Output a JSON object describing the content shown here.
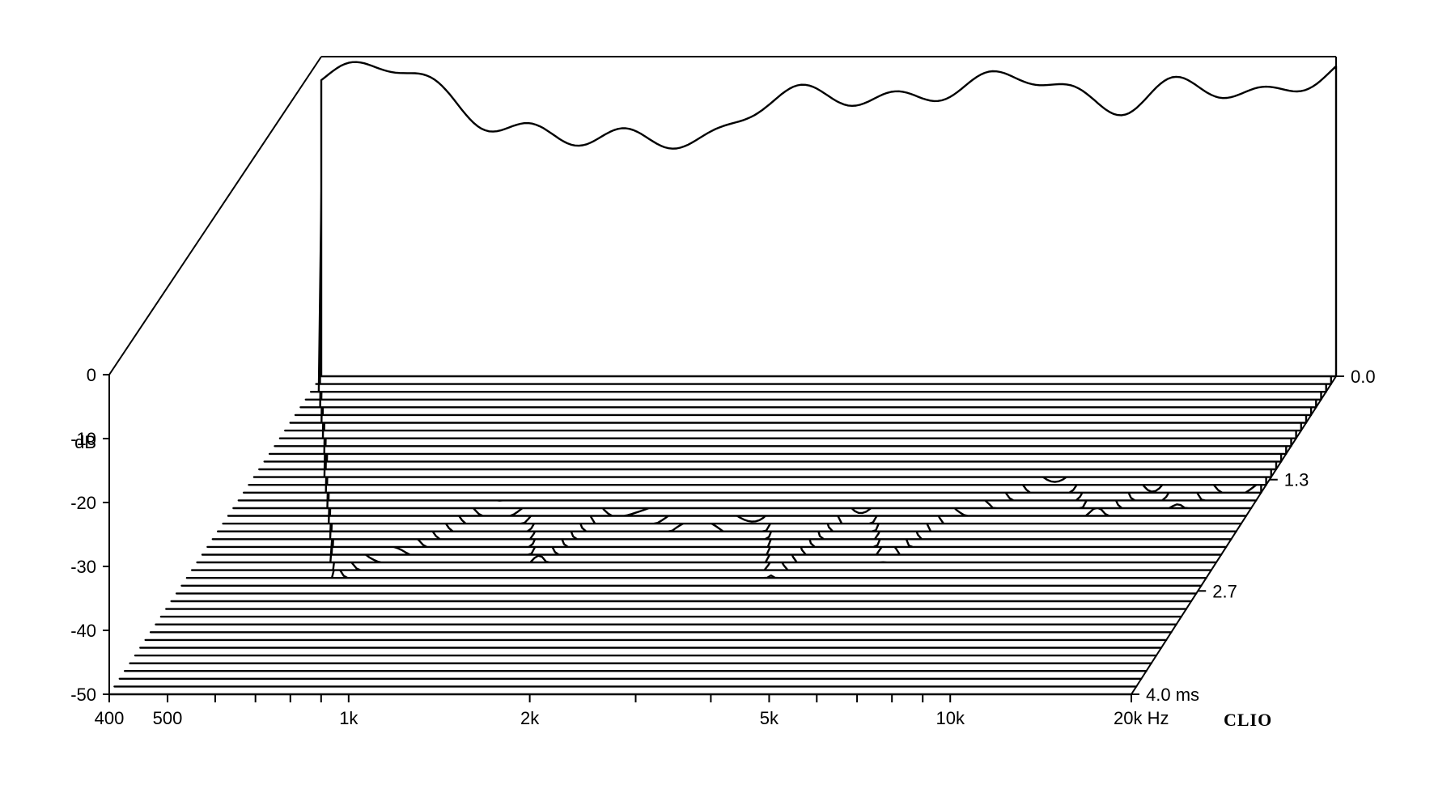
{
  "chart_data": {
    "type": "waterfall",
    "z_axis": {
      "ticks": [
        "0",
        "-10",
        "-20",
        "-30",
        "-40",
        "-50"
      ],
      "unit": "dB",
      "range": [
        -50,
        0
      ]
    },
    "x_axis": {
      "scale": "log",
      "range": [
        400,
        20000
      ],
      "ticks": [
        "400",
        "500",
        "1k",
        "2k",
        "5k",
        "10k",
        "20k Hz"
      ],
      "minor_ticks_hz": [
        600,
        700,
        800,
        900,
        3000,
        4000,
        6000,
        7000,
        8000,
        9000
      ]
    },
    "y_axis": {
      "range": [
        0,
        4.0
      ],
      "ticks": [
        "0.0",
        "1.3",
        "2.7",
        "4.0 ms"
      ]
    },
    "brand": "CLIO",
    "slices_count": 42,
    "spectral_features": [
      {
        "freq_hz": 1150,
        "depth_db": 22,
        "width_oct": 0.35
      },
      {
        "freq_hz": 780,
        "depth_db": 12,
        "width_oct": 0.45
      },
      {
        "freq_hz": 1700,
        "depth_db": 16,
        "width_oct": 0.35
      },
      {
        "freq_hz": 2600,
        "depth_db": 10,
        "width_oct": 0.45
      },
      {
        "freq_hz": 4800,
        "depth_db": 8,
        "width_oct": 0.35
      },
      {
        "freq_hz": 9000,
        "depth_db": 10,
        "width_oct": 0.3
      },
      {
        "freq_hz": 13000,
        "depth_db": 8,
        "width_oct": 0.3
      }
    ],
    "ridges_hz": [
      1500,
      3800,
      5600,
      11500,
      15000
    ]
  }
}
